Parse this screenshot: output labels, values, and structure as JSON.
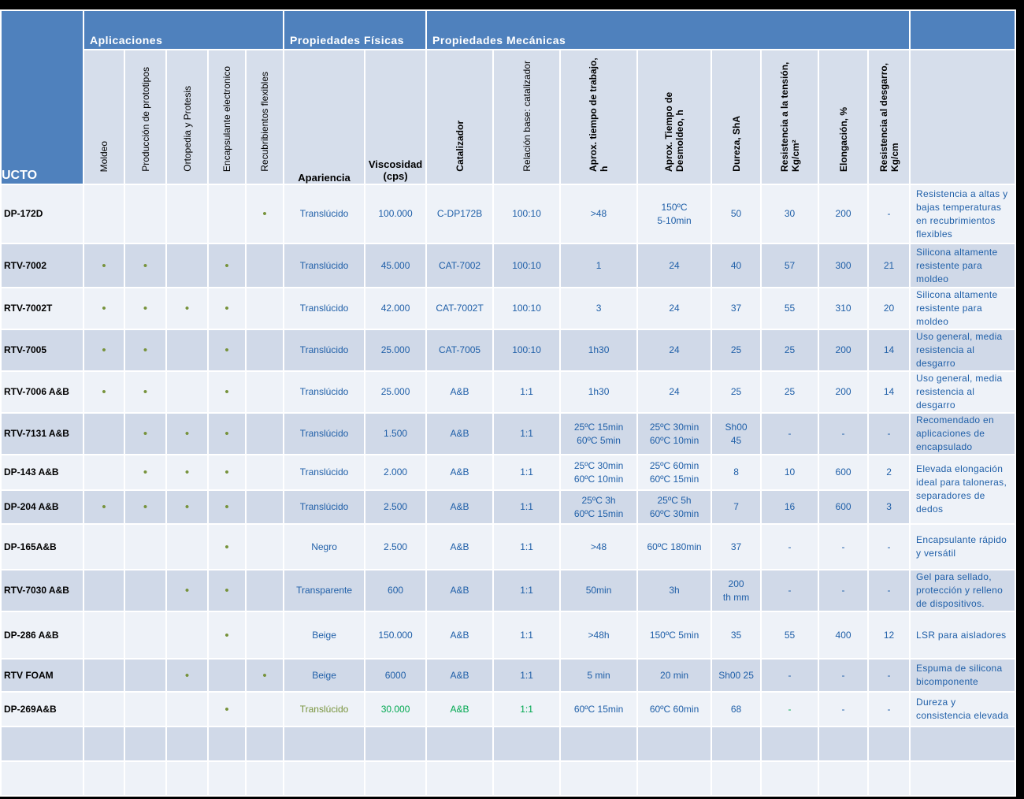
{
  "header": {
    "product": "UCTO",
    "groups": [
      "Aplicaciones",
      "Propiedades Físicas",
      "Propiedades Mecánicas"
    ],
    "columns": [
      "Moldeo",
      "Producción de prototipos",
      "Ortopedia y Protesis",
      "Encapsulante electronico",
      "Recubribientos flexibles",
      "Apariencia",
      "Viscosidad (cps)",
      "Catalizador",
      "Relación base: catalizador",
      "Aprox. tiempo de trabajo, h",
      "Aprox. Tiempo de Desmoldeo, h",
      "Dureza, ShA",
      "Resistencia a la tensión, Kg/cm²",
      "Elongación, %",
      "Resistencia al desgarro, Kg/cm"
    ]
  },
  "table": {
    "rows": [
      [
        "DP-172D",
        null,
        null,
        null,
        null,
        "•",
        "Translúcido",
        "100.000",
        "C-DP172B",
        "100:10",
        ">48",
        "150ºC\n5-10min",
        "50",
        "30",
        "200",
        "-",
        "Resistencia a altas y bajas temperaturas en recubrimientos flexibles"
      ],
      [
        "RTV-7002",
        "•",
        "•",
        null,
        "•",
        null,
        "Translúcido",
        "45.000",
        "CAT-7002",
        "100:10",
        "1",
        "24",
        "40",
        "57",
        "300",
        "21",
        "Silicona altamente resistente para moldeo"
      ],
      [
        "RTV-7002T",
        "•",
        "•",
        "•",
        "•",
        null,
        "Translúcido",
        "42.000",
        "CAT-7002T",
        "100:10",
        "3",
        "24",
        "37",
        "55",
        "310",
        "20",
        "Silicona altamente resistente para moldeo"
      ],
      [
        "RTV-7005",
        "•",
        "•",
        null,
        "•",
        null,
        "Translúcido",
        "25.000",
        "CAT-7005",
        "100:10",
        "1h30",
        "24",
        "25",
        "25",
        "200",
        "14",
        "Uso general, media resistencia al desgarro"
      ],
      [
        "RTV-7006 A&B",
        "•",
        "•",
        null,
        "•",
        null,
        "Translúcido",
        "25.000",
        "A&B",
        "1:1",
        "1h30",
        "24",
        "25",
        "25",
        "200",
        "14",
        "Uso general, media resistencia al desgarro"
      ],
      [
        "RTV-7131 A&B",
        null,
        "•",
        "•",
        "•",
        null,
        "Translúcido",
        "1.500",
        "A&B",
        "1:1",
        "25ºC 15min\n60ºC 5min",
        "25ºC 30min\n60ºC 10min",
        "Sh00\n45",
        "-",
        "-",
        "-",
        "Recomendado en aplicaciones de encapsulado"
      ],
      [
        "DP-143 A&B",
        null,
        "•",
        "•",
        "•",
        null,
        "Translúcido",
        "2.000",
        "A&B",
        "1:1",
        "25ºC 30min\n60ºC 10min",
        "25ºC 60min\n60ºC 15min",
        "8",
        "10",
        "600",
        "2",
        "Elevada elongación ideal para taloneras, separadores de dedos"
      ],
      [
        "DP-204 A&B",
        "•",
        "•",
        "•",
        "•",
        null,
        "Translúcido",
        "2.500",
        "A&B",
        "1:1",
        "25ºC 3h\n60ºC 15min",
        "25ºC 5h\n60ºC 30min",
        "7",
        "16",
        "600",
        "3",
        null
      ],
      [
        "DP-165A&B",
        null,
        null,
        null,
        "•",
        null,
        "Negro",
        "2.500",
        "A&B",
        "1:1",
        ">48",
        "60ºC 180min",
        "37",
        "-",
        "-",
        "-",
        "Encapsulante rápido y versátil"
      ],
      [
        "RTV-7030 A&B",
        null,
        null,
        "•",
        "•",
        null,
        "Transparente",
        "600",
        "A&B",
        "1:1",
        "50min",
        "3h",
        "200\nth mm",
        "-",
        "-",
        "-",
        "Gel para sellado, protección y relleno de dispositivos."
      ],
      [
        "DP-286 A&B",
        null,
        null,
        null,
        "•",
        null,
        "Beige",
        "150.000",
        "A&B",
        "1:1",
        ">48h",
        "150ºC 5min",
        "35",
        "55",
        "400",
        "12",
        "LSR para aisladores"
      ],
      [
        "RTV FOAM",
        null,
        null,
        "•",
        null,
        "•",
        "Beige",
        "6000",
        "A&B",
        "1:1",
        "5 min",
        "20 min",
        "Sh00 25",
        "-",
        "-",
        "-",
        "Espuma de silicona bicomponente"
      ],
      [
        "DP-269A&B",
        null,
        null,
        null,
        "•",
        null,
        "Translúcido",
        "30.000",
        "A&B",
        "1:1",
        "60ºC 15min",
        "60ºC 60min",
        "68",
        "-",
        "-",
        "-",
        "Dureza y consistencia elevada"
      ]
    ]
  }
}
